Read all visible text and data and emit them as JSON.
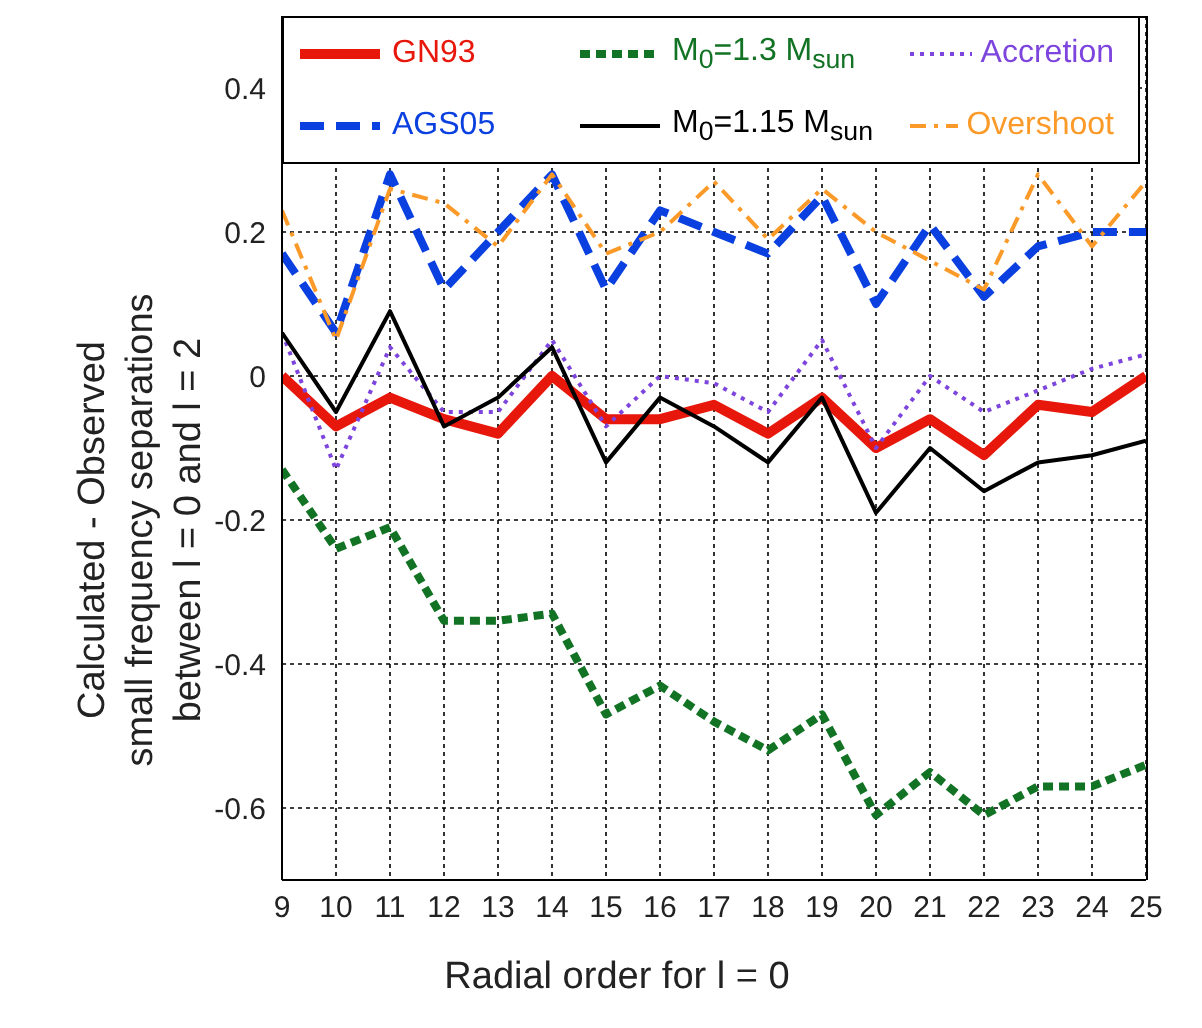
{
  "chart_data": {
    "type": "line",
    "xlabel": "Radial order for l = 0",
    "ylabel": "Calculated - Observed\nsmall frequency separations\nbetween l = 0 and l = 2",
    "x": [
      9,
      10,
      11,
      12,
      13,
      14,
      15,
      16,
      17,
      18,
      19,
      20,
      21,
      22,
      23,
      24,
      25
    ],
    "xlim": [
      9,
      25
    ],
    "xticks": [
      9,
      10,
      11,
      12,
      13,
      14,
      15,
      16,
      17,
      18,
      19,
      20,
      21,
      22,
      23,
      24,
      25
    ],
    "ylim": [
      -0.7,
      0.5
    ],
    "yticks": [
      -0.6,
      -0.4,
      -0.2,
      0,
      0.2,
      0.4
    ],
    "grid": true,
    "legend": "top",
    "marker": "none",
    "series": [
      {
        "name": "GN93",
        "color": "#e8170b",
        "line_style": "solid",
        "values": [
          0,
          -0.07,
          -0.03,
          -0.06,
          -0.08,
          0,
          -0.06,
          -0.06,
          -0.04,
          -0.08,
          -0.03,
          -0.1,
          -0.06,
          -0.11,
          -0.04,
          -0.05,
          0
        ]
      },
      {
        "name": "M$_{0}$=1.3 M$_{sun}$",
        "color": "#137325",
        "line_style": "dashed",
        "values": [
          -0.13,
          -0.24,
          -0.21,
          -0.34,
          -0.34,
          -0.33,
          -0.47,
          -0.43,
          -0.48,
          -0.52,
          -0.47,
          -0.61,
          -0.55,
          -0.61,
          -0.57,
          -0.57,
          -0.54
        ]
      },
      {
        "name": "Accretion",
        "color": "#7d45dd",
        "line_style": "dotted",
        "values": [
          0.06,
          -0.13,
          0.04,
          -0.05,
          -0.05,
          0.05,
          -0.07,
          0,
          -0.01,
          -0.05,
          0.05,
          -0.1,
          0,
          -0.05,
          -0.02,
          0.01,
          0.03
        ]
      },
      {
        "name": "AGS05",
        "color": "#0a3fe0",
        "line_style": "dashed",
        "values": [
          0.17,
          0.06,
          0.28,
          0.12,
          0.2,
          0.28,
          0.12,
          0.23,
          0.2,
          0.17,
          0.25,
          0.1,
          0.21,
          0.11,
          0.18,
          0.2,
          0.2
        ]
      },
      {
        "name": "M$_{0}$=1.15 M$_{sun}$",
        "color": "#000000",
        "line_style": "solid",
        "values": [
          0.06,
          -0.05,
          0.09,
          -0.07,
          -0.03,
          0.04,
          -0.12,
          -0.03,
          -0.07,
          -0.12,
          -0.03,
          -0.19,
          -0.1,
          -0.16,
          -0.12,
          -0.11,
          -0.09
        ]
      },
      {
        "name": "Overshoot",
        "color": "#fb9a28",
        "line_style": "dashed",
        "values": [
          0.23,
          0.05,
          0.26,
          0.24,
          0.18,
          0.28,
          0.17,
          0.2,
          0.27,
          0.19,
          0.26,
          0.2,
          0.16,
          0.12,
          0.28,
          0.18,
          0.27
        ]
      }
    ]
  }
}
